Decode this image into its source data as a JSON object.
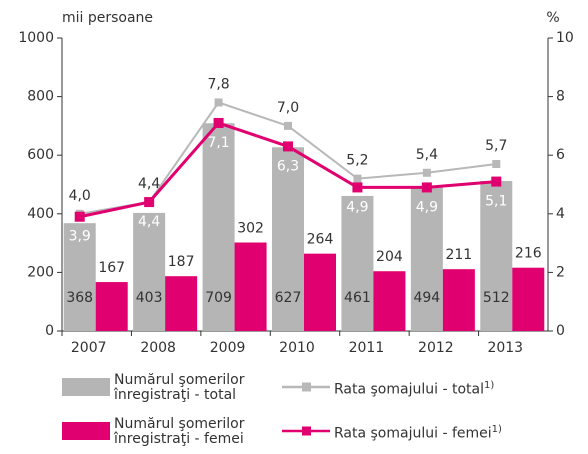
{
  "chart_data": {
    "type": "bar_line",
    "y_label": "mii persoane",
    "y2_label": "%",
    "categories": [
      "2007",
      "2008",
      "2009",
      "2010",
      "2011",
      "2012",
      "2013"
    ],
    "ylim": [
      0,
      1000
    ],
    "yticks": [
      0,
      200,
      400,
      600,
      800,
      1000
    ],
    "y2lim": [
      0,
      10
    ],
    "y2ticks": [
      0,
      2,
      4,
      6,
      8,
      10
    ],
    "legend_note": "1)",
    "series": [
      {
        "name": "Numărul şomerilor înregistraţi - total",
        "type": "bar",
        "color": "#b5b5b5",
        "values": [
          368,
          403,
          709,
          627,
          461,
          494,
          512
        ]
      },
      {
        "name": "Numărul şomerilor înregistraţi - femei",
        "type": "bar",
        "color": "#e0006f",
        "values": [
          167,
          187,
          302,
          264,
          204,
          211,
          216
        ]
      },
      {
        "name": "Rata şomajului - total",
        "type": "line",
        "axis": "y2",
        "color": "#b8b8b8",
        "values": [
          4.0,
          4.4,
          7.8,
          7.0,
          5.2,
          5.4,
          5.7
        ],
        "value_labels": [
          "4,0",
          "4,4",
          "7,8",
          "7,0",
          "5,2",
          "5,4",
          "5,7"
        ]
      },
      {
        "name": "Rata şomajului - femei",
        "type": "line",
        "axis": "y2",
        "color": "#e0006f",
        "values": [
          3.9,
          4.4,
          7.1,
          6.3,
          4.9,
          4.9,
          5.1
        ],
        "value_labels": [
          "3,9",
          "4,4",
          "7,1",
          "6,3",
          "4,9",
          "4,9",
          "5,1"
        ]
      }
    ]
  }
}
